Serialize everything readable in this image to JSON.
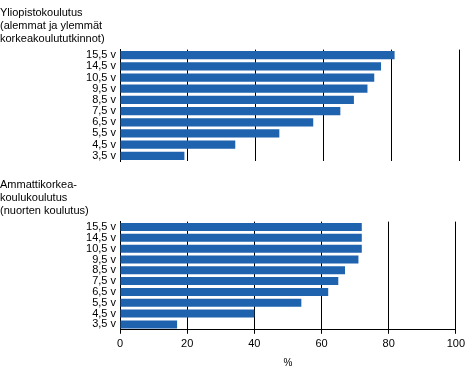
{
  "chart_data": [
    {
      "type": "bar",
      "orientation": "horizontal",
      "title": [
        "Yliopistokoulutus",
        "(alemmat ja ylemmät",
        "korkeakoulututkinnot)"
      ],
      "categories": [
        "15,5 v",
        "14,5 v",
        "10,5 v",
        "9,5 v",
        "8,5 v",
        "7,5 v",
        "6,5 v",
        "5,5 v",
        "4,5 v",
        "3,5 v"
      ],
      "values": [
        81,
        77,
        75,
        73,
        69,
        65,
        57,
        47,
        34,
        19
      ],
      "color": "#1f62ae",
      "xlim": [
        0,
        100
      ],
      "xticks": [
        0,
        20,
        40,
        60,
        80,
        100
      ],
      "grid": true,
      "tick_labels": "y"
    },
    {
      "type": "bar",
      "orientation": "horizontal",
      "title": [
        "Ammattikorkea-",
        "koulukoulutus",
        "(nuorten koulutus)"
      ],
      "categories": [
        "15,5 v",
        "14,5 v",
        "10,5 v",
        "9,5 v",
        "8,5 v",
        "7,5 v",
        "6,5 v",
        "5,5 v",
        "4,5 v",
        "3,5 v"
      ],
      "values": [
        72,
        72,
        72,
        71,
        67,
        65,
        62,
        54,
        40,
        17
      ],
      "color": "#1f62ae",
      "xlabel": "%",
      "xlim": [
        0,
        100
      ],
      "xticks": [
        0,
        20,
        40,
        60,
        80,
        100
      ],
      "grid": true
    }
  ]
}
